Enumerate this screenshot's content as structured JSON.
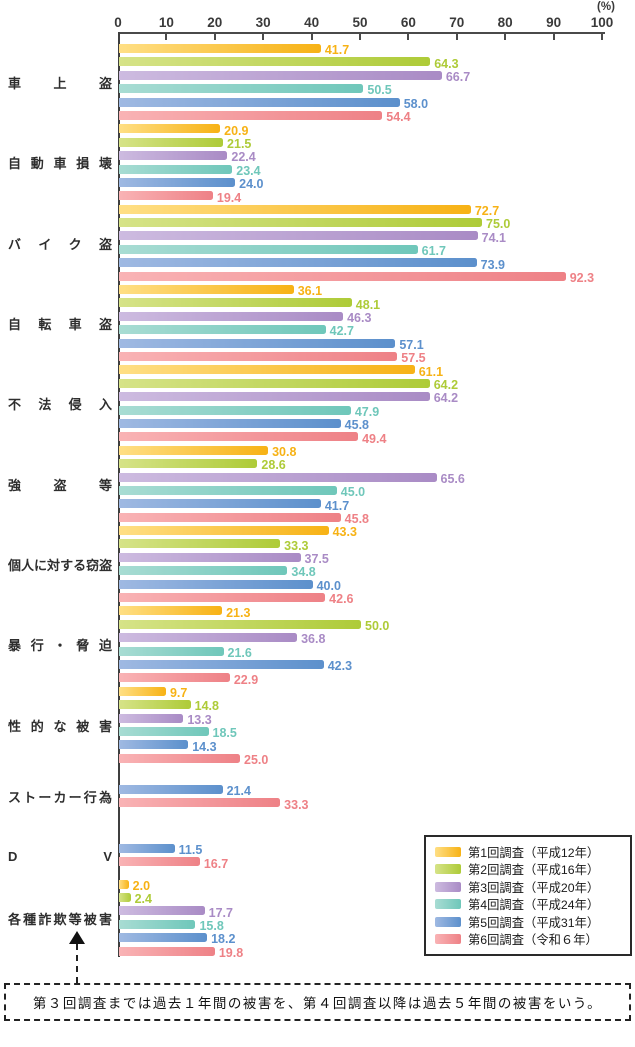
{
  "axis": {
    "unit_label": "(%)",
    "ticks": [
      "0",
      "10",
      "20",
      "30",
      "40",
      "50",
      "60",
      "70",
      "80",
      "90",
      "100"
    ]
  },
  "chart_data": {
    "type": "bar",
    "orientation": "horizontal",
    "xlim": [
      0,
      100
    ],
    "x_unit": "%",
    "grid": false,
    "legend_position": "bottom-right",
    "categories": [
      "車上盗",
      "自動車損壊",
      "バイク盗",
      "自転車盗",
      "不法侵入",
      "強盗等",
      "個人に対する窃盗",
      "暴行・脅迫",
      "性的な被害",
      "ストーカー行為",
      "D V",
      "各種詐欺等被害"
    ],
    "series": [
      {
        "name": "第1回調査（平成12年）",
        "color": "#F7B215",
        "color_light": "#FFDF85",
        "values": [
          41.7,
          20.9,
          72.7,
          36.1,
          61.1,
          30.8,
          43.3,
          21.3,
          9.7,
          null,
          null,
          2.0
        ]
      },
      {
        "name": "第2回調査（平成16年）",
        "color": "#AECB38",
        "color_light": "#D6E388",
        "values": [
          64.3,
          21.5,
          75.0,
          48.1,
          64.2,
          28.6,
          33.3,
          50.0,
          14.8,
          null,
          null,
          2.4
        ]
      },
      {
        "name": "第3回調査（平成20年）",
        "color": "#A98BC5",
        "color_light": "#CDBBE0",
        "values": [
          66.7,
          22.4,
          74.1,
          46.3,
          64.2,
          65.6,
          37.5,
          36.8,
          13.3,
          null,
          null,
          17.7
        ]
      },
      {
        "name": "第4回調査（平成24年）",
        "color": "#6FC7BA",
        "color_light": "#A8DCD3",
        "values": [
          50.5,
          23.4,
          61.7,
          42.7,
          47.9,
          45.0,
          34.8,
          21.6,
          18.5,
          null,
          null,
          15.8
        ]
      },
      {
        "name": "第5回調査（平成31年）",
        "color": "#5C90CC",
        "color_light": "#9FB9E2",
        "values": [
          58.0,
          24.0,
          73.9,
          57.1,
          45.8,
          41.7,
          40.0,
          42.3,
          14.3,
          21.4,
          11.5,
          18.2
        ]
      },
      {
        "name": "第6回調査（令和６年）",
        "color": "#EE8186",
        "color_light": "#F9B3B5",
        "values": [
          54.4,
          19.4,
          92.3,
          57.5,
          49.4,
          45.8,
          42.6,
          22.9,
          25.0,
          33.3,
          16.7,
          19.8
        ]
      }
    ]
  },
  "legend": {
    "items": [
      "第1回調査（平成12年）",
      "第2回調査（平成16年）",
      "第3回調査（平成20年）",
      "第4回調査（平成24年）",
      "第5回調査（平成31年）",
      "第6回調査（令和６年）"
    ]
  },
  "note": {
    "text": "第３回調査までは過去１年間の被害を、第４回調査以降は過去５年間の被害をいう。"
  }
}
